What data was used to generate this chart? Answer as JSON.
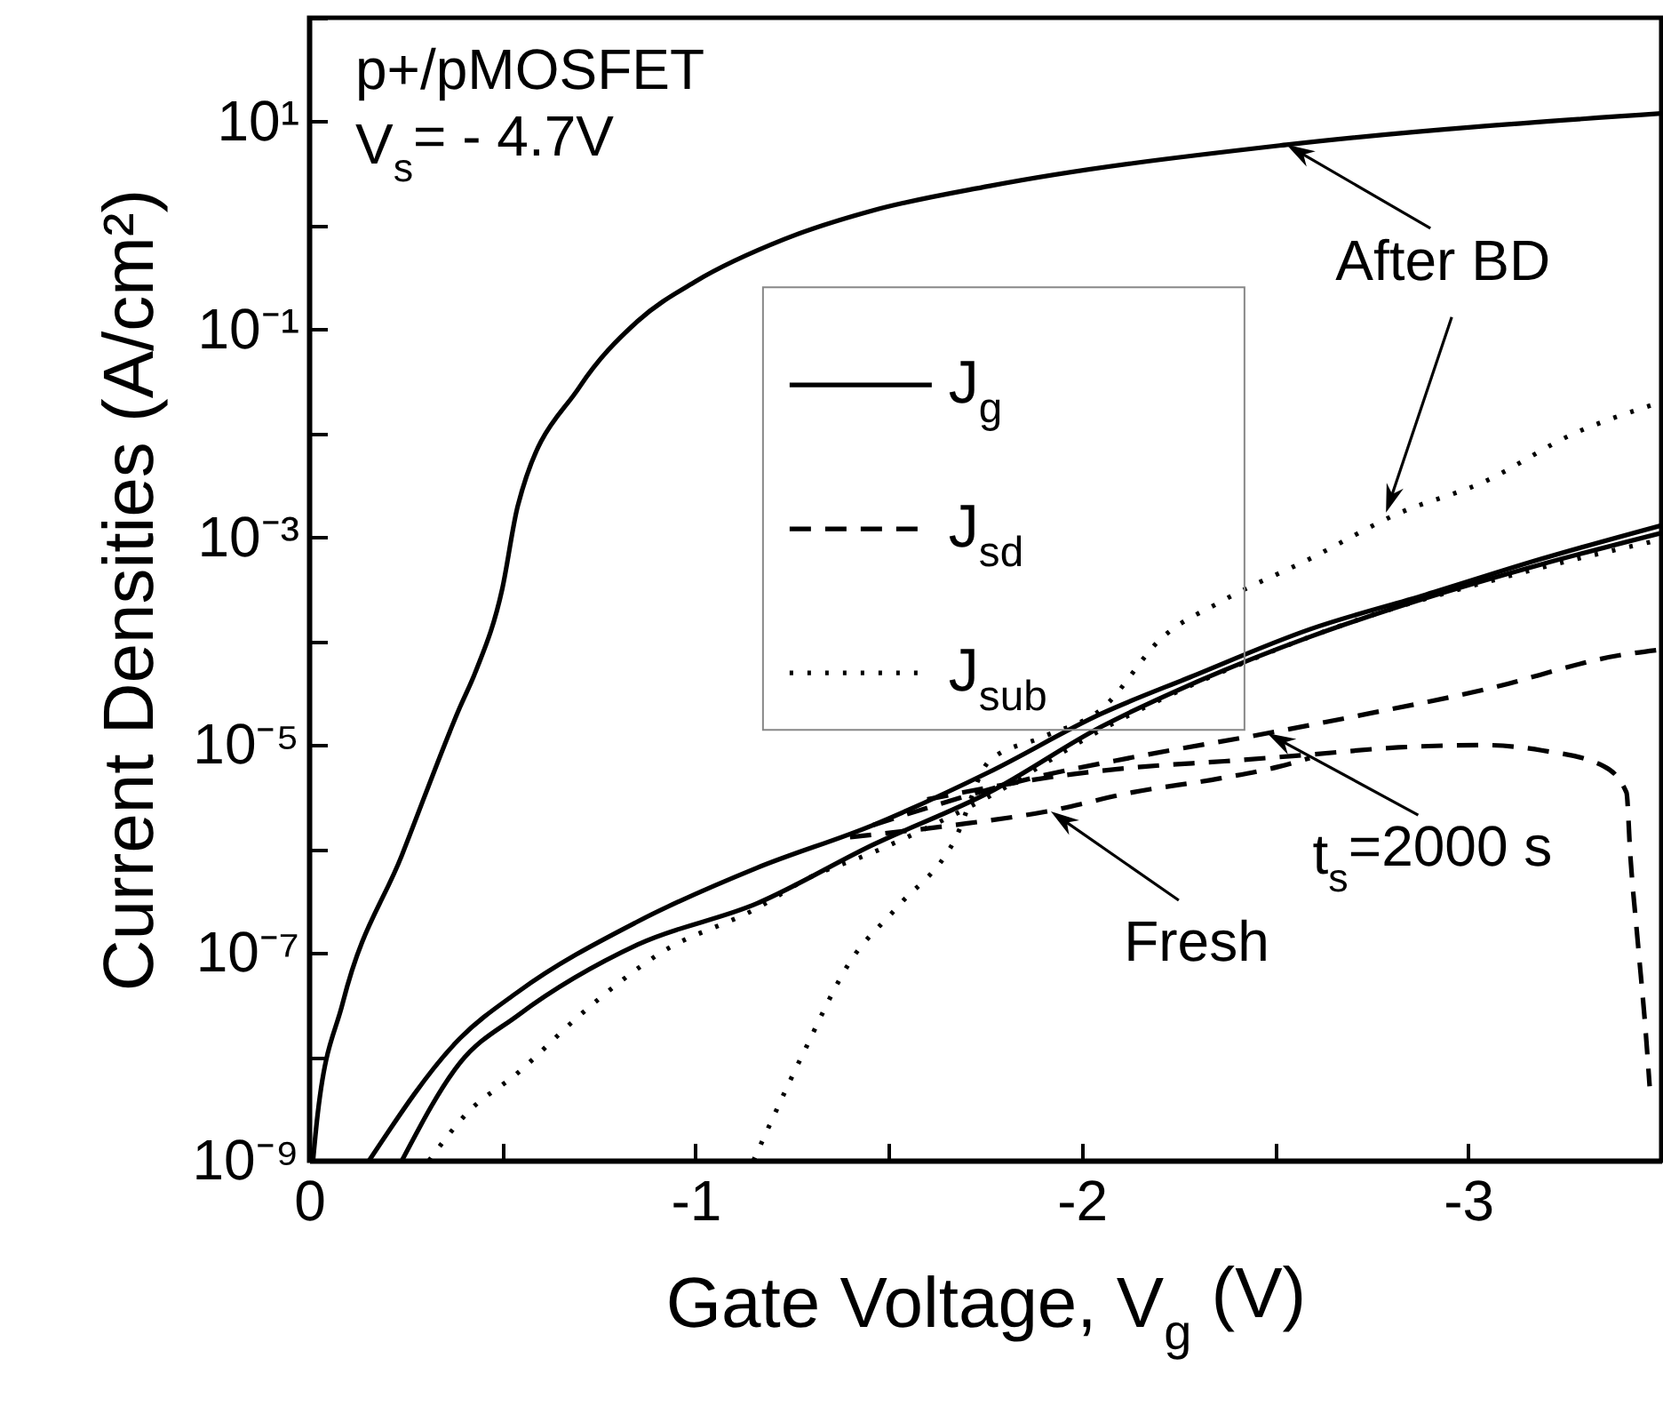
{
  "chart_data": {
    "type": "line",
    "xlabel": "Gate Voltage, V$_{g}$ (V)",
    "ylabel": "Current Densities (A/cm²)",
    "annotations": [
      "p+/pMOSFET",
      "V$_{s}$= - 4.7V",
      {
        "text": "After BD",
        "x": -2.53,
        "y": 6
      },
      {
        "text": "t$_{s}$=2000 s",
        "x": -2.48,
        "y": 1.3e-05
      },
      {
        "text": "Fresh",
        "x": -1.92,
        "y": 2.3e-06
      }
    ],
    "series": [
      {
        "name": "J$_{g}$",
        "color": "#000000",
        "line_style": "solid",
        "x": [
          -0.01,
          -0.02,
          -0.087,
          -0.24,
          -0.39,
          -0.43,
          -0.5,
          -0.54,
          -0.7,
          -0.85,
          -1.0,
          -1.23,
          -1.46,
          -1.76,
          -2.53,
          -3.5
        ],
        "values": [
          1e-09,
          2.4e-09,
          3.3e-08,
          8.7e-07,
          2.3e-05,
          5e-05,
          0.00032,
          0.002,
          0.028,
          0.12,
          0.29,
          0.74,
          1.4,
          2.4,
          6,
          12
        ]
      },
      {
        "color": "#000000",
        "line_style": "solid",
        "x": [
          -0.155,
          -0.39,
          -0.54,
          -0.85,
          -1.16,
          -1.46,
          -1.76,
          -2.05,
          -2.28,
          -2.59,
          -2.89,
          -3.19,
          -3.5
        ],
        "values": [
          1e-09,
          1.5e-08,
          4.2e-08,
          2e-07,
          6.6e-07,
          1.7e-06,
          5.5e-06,
          2e-05,
          4.5e-05,
          0.00013,
          0.00028,
          0.00062,
          0.0013
        ]
      },
      {
        "color": "#000000",
        "line_style": "solid",
        "x": [
          -0.24,
          -0.39,
          -0.54,
          -0.85,
          -1.16,
          -1.46,
          -1.76,
          -2.05,
          -2.28,
          -2.59,
          -2.89,
          -3.19,
          -3.5
        ],
        "values": [
          1e-09,
          8.7e-09,
          2.5e-08,
          1.2e-07,
          3e-07,
          1.1e-06,
          3.5e-06,
          1.5e-05,
          3.8e-05,
          0.00011,
          0.00026,
          0.00055,
          0.0011
        ]
      },
      {
        "name": "J$_{sd}$",
        "color": "#000000",
        "line_style": "dashed",
        "x": [
          -1.46,
          -1.9,
          -2.13,
          -2.48,
          -2.74,
          -3.04,
          -3.4,
          -3.5
        ],
        "values": [
          1.7e-06,
          5.1e-06,
          7.6e-06,
          1.3e-05,
          2e-05,
          3.4e-05,
          7.4e-05,
          8.3e-05
        ]
      },
      {
        "color": "#000000",
        "line_style": "dashed",
        "x": [
          -1.6,
          -1.95,
          -2.16,
          -2.37,
          -2.59,
          -2.82,
          -3.04,
          -3.19,
          -3.35,
          -3.41,
          -3.42,
          -3.44,
          -3.46,
          -3.47
        ],
        "values": [
          3e-06,
          5.1e-06,
          6.2e-06,
          7e-06,
          8.1e-06,
          9.5e-06,
          1e-05,
          8.9e-06,
          6.3e-06,
          3.5e-06,
          8.7e-07,
          1.2e-07,
          1.7e-08,
          5.2e-09
        ]
      },
      {
        "color": "#000000",
        "line_style": "dashed",
        "x": [
          -1.4,
          -1.67,
          -1.91,
          -2.13,
          -2.36,
          -2.51,
          -2.59
        ],
        "values": [
          1.3e-06,
          1.7e-06,
          2.3e-06,
          3.5e-06,
          4.8e-06,
          6.2e-06,
          7.5e-06
        ]
      },
      {
        "name": "J$_{sub}$",
        "color": "#000000",
        "line_style": "dotted",
        "x": [
          -0.31,
          -0.41,
          -0.54,
          -0.7,
          -0.91,
          -1.16,
          -1.29,
          -1.46,
          -1.76,
          -2.05,
          -2.59,
          -3.19,
          -3.5
        ],
        "values": [
          1e-09,
          2.9e-09,
          7e-09,
          2.5e-08,
          1e-07,
          2.7e-07,
          5.2e-07,
          9.3e-07,
          3.2e-06,
          1.4e-05,
          0.00011,
          0.00051,
          0.00095
        ]
      },
      {
        "color": "#000000",
        "line_style": "dotted",
        "x": [
          -1.15,
          -1.28,
          -1.4,
          -1.52,
          -1.67,
          -1.76,
          -1.9,
          -2.05,
          -2.21,
          -2.36,
          -2.59,
          -2.82,
          -3.04,
          -3.27,
          -3.5
        ],
        "values": [
          1e-09,
          1.1e-08,
          8.2e-08,
          2.7e-07,
          1.2e-06,
          7e-06,
          1.2e-05,
          2.2e-05,
          0.00011,
          0.00024,
          0.00062,
          0.0017,
          0.0034,
          0.0098,
          0.02
        ]
      }
    ],
    "xlim": [
      0,
      -3.5
    ],
    "xticks": [
      0,
      {
        "value": -0.5,
        "label": null
      },
      -1,
      {
        "value": -1.5,
        "label": null
      },
      -2,
      {
        "value": -2.5,
        "label": null
      },
      -3,
      {
        "value": -3.5,
        "label": null
      }
    ],
    "ylim": [
      1e-09,
      100
    ],
    "yticks": [
      {
        "value": 1e-09,
        "label": "10⁻⁹"
      },
      {
        "value": 1e-08,
        "label": null
      },
      {
        "value": 1e-07,
        "label": "10⁻⁷"
      },
      {
        "value": 1e-06,
        "label": null
      },
      {
        "value": 1e-05,
        "label": "10⁻⁵"
      },
      {
        "value": 0.0001,
        "label": null
      },
      {
        "value": 0.001,
        "label": "10⁻³"
      },
      {
        "value": 0.01,
        "label": null
      },
      {
        "value": 0.1,
        "label": "10⁻¹"
      },
      {
        "value": 1,
        "label": null
      },
      {
        "value": 10,
        "label": "10¹"
      },
      {
        "value": 100,
        "label": null
      }
    ],
    "log": true,
    "legend": "top"
  }
}
